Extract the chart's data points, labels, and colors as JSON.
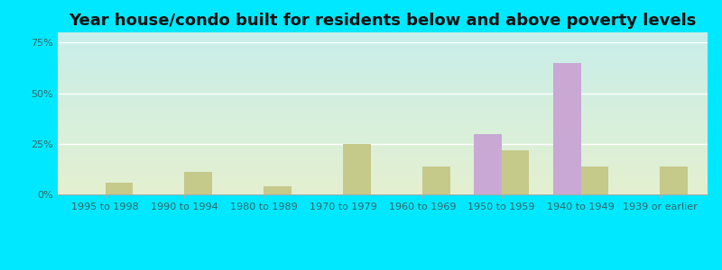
{
  "title": "Year house/condo built for residents below and above poverty levels",
  "categories": [
    "1995 to 1998",
    "1990 to 1994",
    "1980 to 1989",
    "1970 to 1979",
    "1960 to 1969",
    "1950 to 1959",
    "1940 to 1949",
    "1939 or earlier"
  ],
  "below_poverty": [
    0,
    0,
    0,
    0,
    0,
    30,
    65,
    0
  ],
  "above_poverty": [
    6,
    11,
    4,
    25,
    14,
    22,
    14,
    14
  ],
  "below_color": "#c9a8d4",
  "above_color": "#c5c98a",
  "title_fontsize": 13,
  "tick_fontsize": 8,
  "legend_fontsize": 9.5,
  "ylim": [
    0,
    80
  ],
  "yticks": [
    0,
    25,
    50,
    75
  ],
  "ytick_labels": [
    "0%",
    "25%",
    "50%",
    "75%"
  ],
  "bg_top_color": "#c8eeea",
  "bg_bottom_color": "#e4f0d0",
  "outer_bg": "#00e8ff",
  "bar_width": 0.35,
  "grid_color": "#ffffff"
}
